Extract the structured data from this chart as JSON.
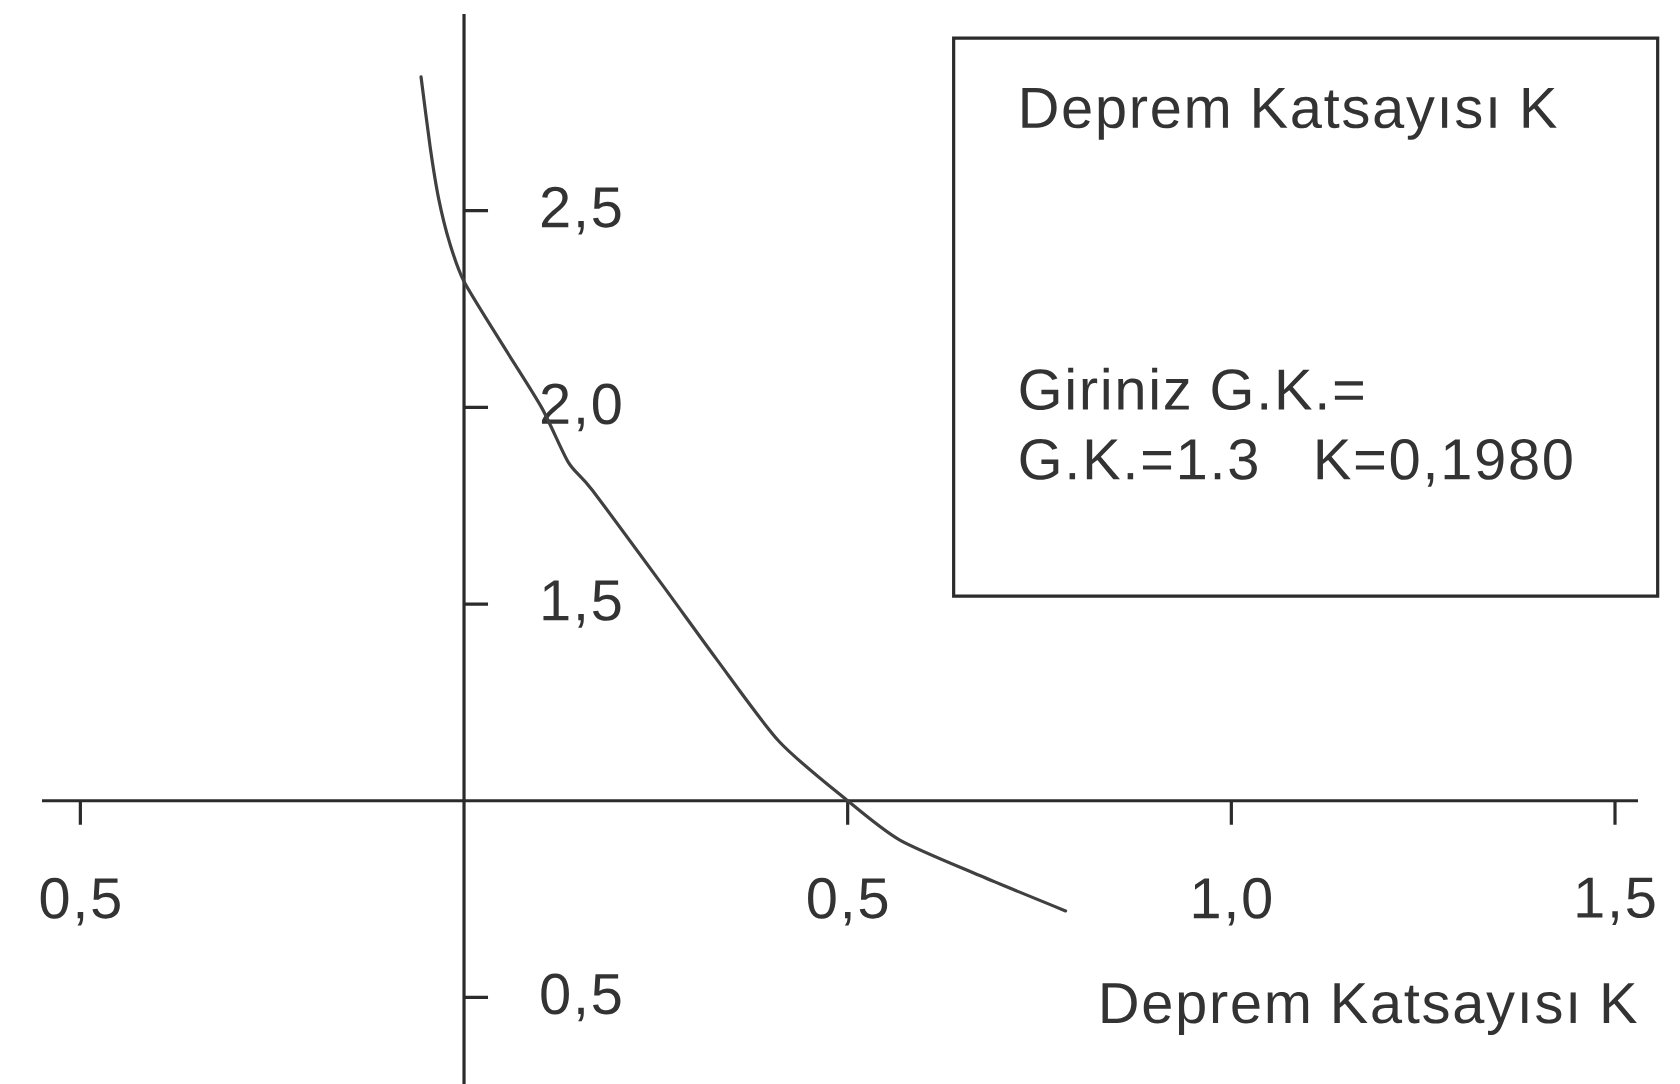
{
  "chart_data": {
    "type": "line",
    "title": "Deprem Katsayısı K",
    "xlabel": "Deprem Katsayısı K",
    "annotations": [
      "Giriniz G.K.=",
      "G.K.=1.3   K=0,1980"
    ],
    "x": [
      -0.056,
      -0.044,
      -0.033,
      -0.019,
      0.0,
      0.05,
      0.101,
      0.136,
      0.167,
      0.258,
      0.329,
      0.411,
      0.5,
      0.568,
      0.672,
      0.784
    ],
    "series": [
      {
        "color": "#404040",
        "values": [
          2.84,
          2.66,
          2.53,
          2.42,
          2.32,
          2.16,
          2.0,
          1.86,
          1.79,
          1.55,
          1.36,
          1.15,
          1.0,
          0.9,
          0.81,
          0.72
        ]
      }
    ],
    "xlim": [
      -0.55,
      1.53
    ],
    "ylim": [
      0.28,
      3.0
    ],
    "xticks": [
      {
        "value": -0.5,
        "label": "0,5"
      },
      {
        "value": 0.5,
        "label": "0,5"
      },
      {
        "value": 1.0,
        "label": "1,0"
      },
      {
        "value": 1.5,
        "label": "1,5"
      }
    ],
    "yticks": [
      {
        "value": 0.5,
        "label": "0,5"
      },
      {
        "value": 1.5,
        "label": "1,5"
      },
      {
        "value": 2.0,
        "label": "2,0"
      },
      {
        "value": 2.5,
        "label": "2,5"
      }
    ],
    "marker": "none",
    "line_style": "solid"
  }
}
